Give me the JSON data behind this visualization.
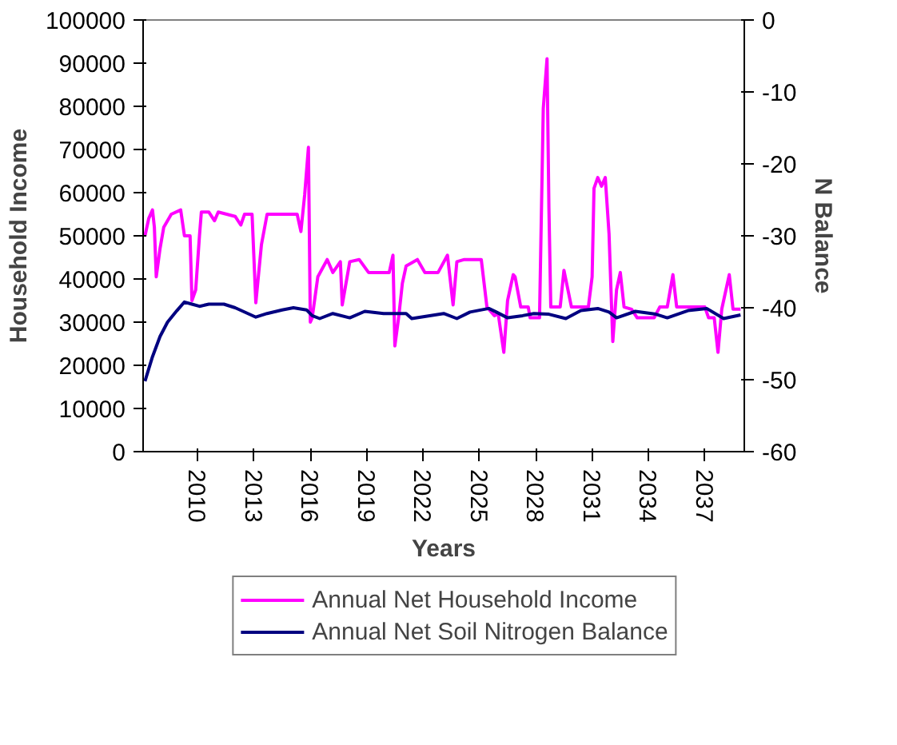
{
  "chart_data": {
    "type": "line",
    "xlabel": "Years",
    "ylabel": "Household Income",
    "y2label": "N Balance",
    "xlim": [
      2007.1,
      2039.1
    ],
    "xticks": [
      2010,
      2013,
      2016,
      2019,
      2022,
      2025,
      2028,
      2031,
      2034,
      2037
    ],
    "ylim": [
      0,
      100000
    ],
    "yticks": [
      0,
      10000,
      20000,
      30000,
      40000,
      50000,
      60000,
      70000,
      80000,
      90000,
      100000
    ],
    "y2lim": [
      -60,
      0
    ],
    "y2ticks": [
      -60,
      -50,
      -40,
      -30,
      -20,
      -10,
      0
    ],
    "grid": false,
    "legend": "bottom",
    "marker": "none",
    "line_style": "solid",
    "series": [
      {
        "name": "Annual Net Household Income",
        "color": "#ff00ff",
        "x": [
          2007.2,
          2007.4,
          2007.6,
          2007.7,
          2007.8,
          2008.0,
          2008.2,
          2008.6,
          2009.1,
          2009.3,
          2009.6,
          2009.7,
          2009.9,
          2010.1,
          2010.2,
          2010.6,
          2010.9,
          2011.1,
          2012.0,
          2012.3,
          2012.5,
          2012.9,
          2013.1,
          2013.4,
          2013.7,
          2015.3,
          2015.5,
          2015.7,
          2015.9,
          2016.0,
          2016.1,
          2016.4,
          2016.9,
          2017.2,
          2017.6,
          2017.7,
          2018.1,
          2018.6,
          2019.1,
          2020.2,
          2020.4,
          2020.5,
          2020.7,
          2020.9,
          2021.1,
          2021.7,
          2022.1,
          2022.8,
          2023.3,
          2023.6,
          2023.8,
          2024.2,
          2025.1,
          2025.4,
          2025.8,
          2026.0,
          2026.3,
          2026.5,
          2026.8,
          2026.9,
          2027.2,
          2027.6,
          2027.7,
          2028.2,
          2028.4,
          2028.6,
          2028.7,
          2028.8,
          2029.3,
          2029.5,
          2029.9,
          2030.8,
          2031.0,
          2031.1,
          2031.3,
          2031.5,
          2031.7,
          2031.9,
          2032.1,
          2032.3,
          2032.5,
          2032.7,
          2033.1,
          2033.4,
          2034.3,
          2034.6,
          2035.0,
          2035.3,
          2035.5,
          2037.0,
          2037.2,
          2037.5,
          2037.7,
          2037.9,
          2038.3,
          2038.5,
          2038.9
        ],
        "values": [
          50000,
          54000,
          56000,
          52000,
          40500,
          47000,
          52000,
          55000,
          56000,
          50000,
          50000,
          35000,
          37500,
          50000,
          55500,
          55500,
          53500,
          55500,
          54500,
          52500,
          55000,
          55000,
          34500,
          48000,
          55000,
          55000,
          51000,
          59500,
          70500,
          30000,
          31000,
          40500,
          44500,
          41500,
          44000,
          34000,
          44000,
          44500,
          41500,
          41500,
          45500,
          24500,
          31000,
          39000,
          43000,
          44500,
          41500,
          41500,
          45500,
          34000,
          44000,
          44500,
          44500,
          33500,
          31500,
          32000,
          23000,
          35000,
          41000,
          40500,
          33500,
          33500,
          31000,
          31000,
          79500,
          91000,
          56500,
          33500,
          33500,
          42000,
          33500,
          33500,
          40500,
          61000,
          63500,
          61500,
          63500,
          50500,
          25500,
          37500,
          41500,
          33500,
          33000,
          31000,
          31000,
          33500,
          33500,
          41000,
          33500,
          33500,
          31000,
          31000,
          23000,
          33000,
          41000,
          33000,
          33000
        ]
      },
      {
        "name": "Annual Net Soil Nitrogen Balance",
        "color": "#000080",
        "axis": "y2",
        "x": [
          2007.2,
          2007.6,
          2008.0,
          2008.4,
          2008.9,
          2009.3,
          2009.7,
          2010.1,
          2010.6,
          2011.4,
          2012.0,
          2013.1,
          2013.7,
          2014.5,
          2015.1,
          2015.8,
          2016.1,
          2016.5,
          2017.2,
          2018.1,
          2018.9,
          2019.9,
          2021.1,
          2021.4,
          2023.1,
          2023.8,
          2024.5,
          2025.5,
          2025.9,
          2026.5,
          2027.3,
          2027.9,
          2028.7,
          2029.6,
          2030.4,
          2031.3,
          2031.9,
          2032.3,
          2033.3,
          2034.4,
          2035.0,
          2036.1,
          2037.1,
          2038.0,
          2038.9
        ],
        "values": [
          -50.2,
          -46.8,
          -44.0,
          -42.0,
          -40.4,
          -39.2,
          -39.5,
          -39.8,
          -39.5,
          -39.5,
          -40.0,
          -41.3,
          -40.8,
          -40.3,
          -40.0,
          -40.3,
          -41.1,
          -41.5,
          -40.8,
          -41.4,
          -40.5,
          -40.8,
          -40.8,
          -41.5,
          -40.8,
          -41.5,
          -40.6,
          -40.1,
          -40.6,
          -41.4,
          -41.1,
          -40.8,
          -40.9,
          -41.5,
          -40.4,
          -40.1,
          -40.6,
          -41.4,
          -40.5,
          -40.9,
          -41.4,
          -40.4,
          -40.1,
          -41.5,
          -41.0
        ]
      }
    ]
  }
}
